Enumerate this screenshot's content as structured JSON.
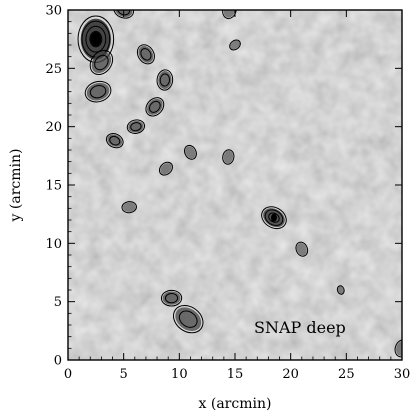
{
  "chart_data": {
    "type": "heatmap",
    "title": "",
    "xlabel": "x (arcmin)",
    "ylabel": "y (arcmin)",
    "xlim": [
      0,
      30
    ],
    "ylim": [
      0,
      30
    ],
    "xticks": [
      0,
      5,
      10,
      15,
      20,
      25,
      30
    ],
    "yticks": [
      0,
      5,
      10,
      15,
      20,
      25,
      30
    ],
    "annotation": "SNAP deep",
    "colormap": "grayscale",
    "grid": false,
    "contour_sources": [
      {
        "x": 2.5,
        "y": 27.5,
        "strength": 4,
        "size": 1.6
      },
      {
        "x": 3.0,
        "y": 25.5,
        "strength": 2,
        "size": 0.9
      },
      {
        "x": 2.7,
        "y": 23.0,
        "strength": 2,
        "size": 0.9
      },
      {
        "x": 5.0,
        "y": 30.0,
        "strength": 2,
        "size": 0.7
      },
      {
        "x": 7.0,
        "y": 26.2,
        "strength": 2,
        "size": 0.7
      },
      {
        "x": 8.7,
        "y": 24.0,
        "strength": 2,
        "size": 0.7
      },
      {
        "x": 7.8,
        "y": 21.7,
        "strength": 2,
        "size": 0.7
      },
      {
        "x": 6.1,
        "y": 20.0,
        "strength": 2,
        "size": 0.6
      },
      {
        "x": 4.2,
        "y": 18.8,
        "strength": 2,
        "size": 0.6
      },
      {
        "x": 11.0,
        "y": 17.8,
        "strength": 1,
        "size": 0.5
      },
      {
        "x": 14.4,
        "y": 17.4,
        "strength": 1,
        "size": 0.5
      },
      {
        "x": 8.8,
        "y": 16.4,
        "strength": 1,
        "size": 0.5
      },
      {
        "x": 5.5,
        "y": 13.1,
        "strength": 1,
        "size": 0.5
      },
      {
        "x": 18.5,
        "y": 12.2,
        "strength": 3,
        "size": 0.9
      },
      {
        "x": 21.0,
        "y": 9.5,
        "strength": 1,
        "size": 0.5
      },
      {
        "x": 14.5,
        "y": 30.0,
        "strength": 1,
        "size": 0.6
      },
      {
        "x": 15.0,
        "y": 27.0,
        "strength": 1,
        "size": 0.4
      },
      {
        "x": 9.3,
        "y": 5.3,
        "strength": 2,
        "size": 0.7
      },
      {
        "x": 10.8,
        "y": 3.5,
        "strength": 2,
        "size": 1.1
      },
      {
        "x": 24.5,
        "y": 6.0,
        "strength": 1,
        "size": 0.3
      },
      {
        "x": 30.0,
        "y": 1.0,
        "strength": 1,
        "size": 0.6
      }
    ]
  }
}
